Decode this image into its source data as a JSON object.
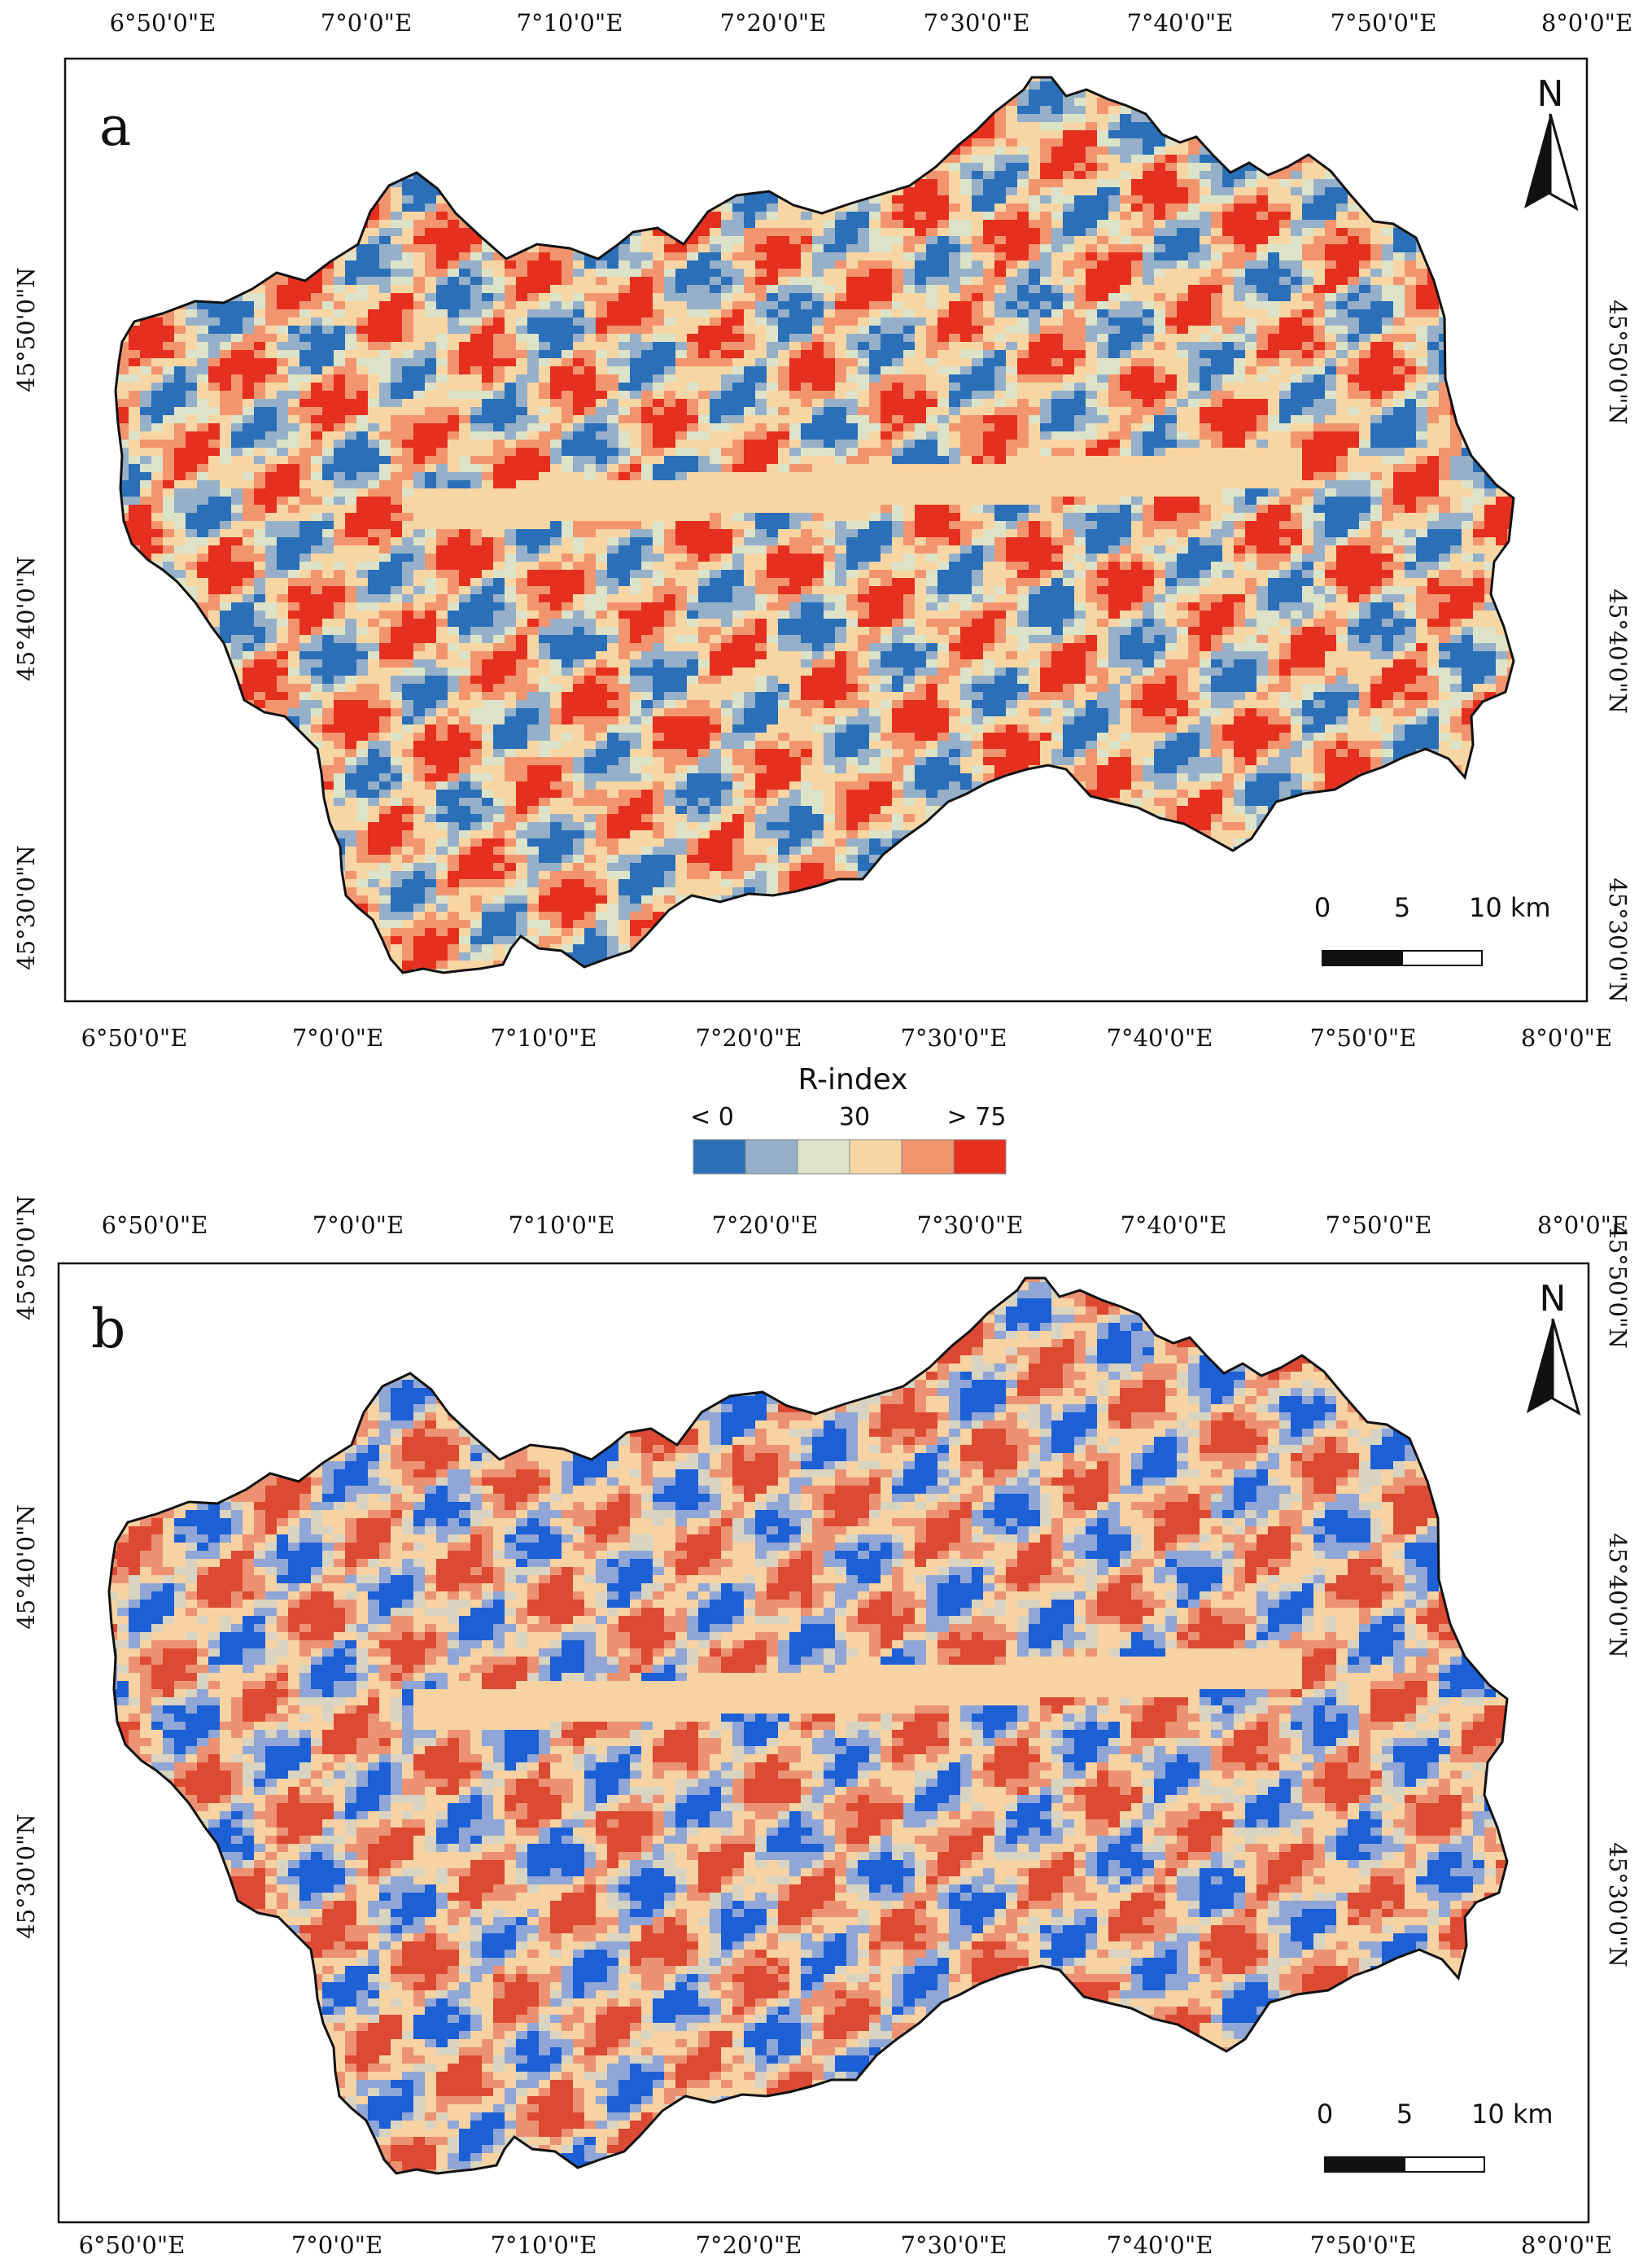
{
  "colors": {
    "class_colors": [
      "#2a6fb8",
      "#95b0c8",
      "#dce3c8",
      "#f8d6a4",
      "#f2956f",
      "#e5301f"
    ],
    "class_colors_panel_b": [
      "#1d5fd4",
      "#8fa6d6",
      "#d9d3c1",
      "#f7d2a2",
      "#ec9272",
      "#dc4a34"
    ],
    "frame": "#111111"
  },
  "x_ticks": [
    "6°50'0\"E",
    "7°0'0\"E",
    "7°10'0\"E",
    "7°20'0\"E",
    "7°30'0\"E",
    "7°40'0\"E",
    "7°50'0\"E",
    "8°0'0\"E"
  ],
  "y_ticks": [
    "45°50'0\"N",
    "45°40'0\"N",
    "45°30'0\"N"
  ],
  "panels": [
    {
      "letter": "a",
      "north": "N",
      "scale": {
        "labels": [
          "0",
          "5",
          "10 km"
        ]
      }
    },
    {
      "letter": "b",
      "north": "N",
      "scale": {
        "labels": [
          "0",
          "5",
          "10 km"
        ]
      }
    }
  ],
  "legend": {
    "title": "R-index",
    "labels": {
      "low": "< 0",
      "mid": "30",
      "high": "> 75"
    },
    "classes": 6
  },
  "icons": {
    "north_arrow": "north-arrow-icon",
    "scale_bar": "scale-bar-icon"
  }
}
